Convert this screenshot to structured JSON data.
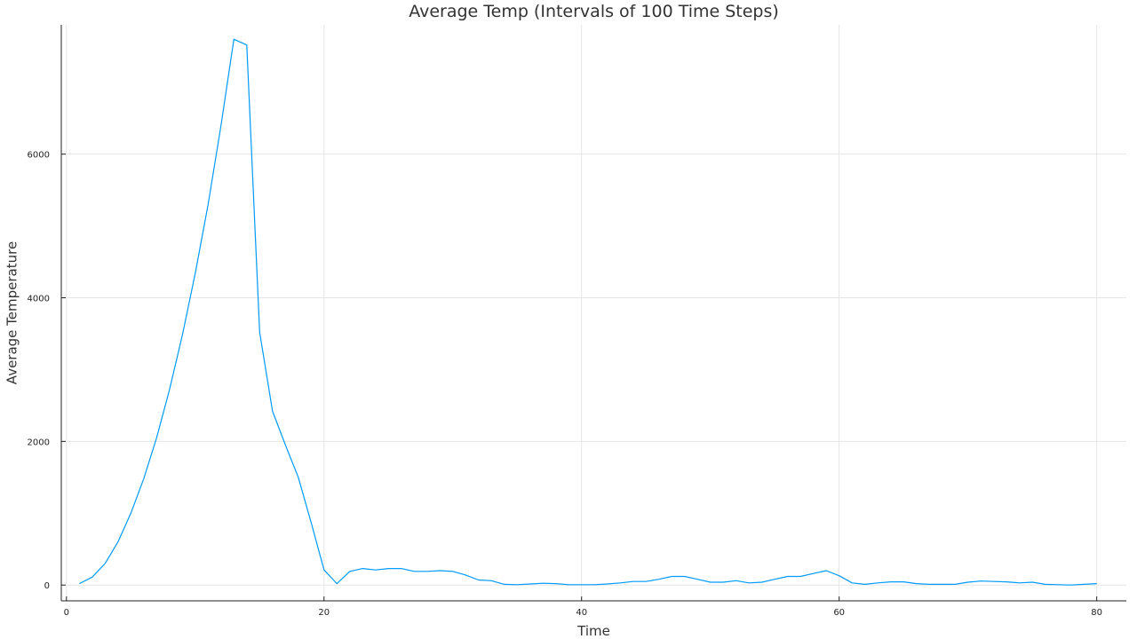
{
  "chart_data": {
    "type": "line",
    "title": "Average Temp (Intervals of 100 Time Steps)",
    "xlabel": "Time",
    "ylabel": "Average Temperature",
    "xlim": [
      -0.4,
      82.3
    ],
    "ylim": [
      -220,
      7800
    ],
    "xticks": [
      0,
      20,
      40,
      60,
      80
    ],
    "yticks": [
      0,
      2000,
      4000,
      6000
    ],
    "grid": true,
    "legend": "none",
    "colors": {
      "series": "#009af9",
      "grid": "#e6e6e6",
      "axis": "#222222",
      "text": "#333333"
    },
    "series": [
      {
        "x": [
          1,
          2,
          3,
          4,
          5,
          6,
          7,
          8,
          9,
          10,
          11,
          12,
          13,
          14,
          15,
          16,
          17,
          18,
          19,
          20,
          21,
          22,
          23,
          24,
          25,
          26,
          27,
          28,
          29,
          30,
          31,
          32,
          33,
          34,
          35,
          36,
          37,
          38,
          39,
          40,
          41,
          42,
          43,
          44,
          45,
          46,
          47,
          48,
          49,
          50,
          51,
          52,
          53,
          54,
          55,
          56,
          57,
          58,
          59,
          60,
          61,
          62,
          63,
          64,
          65,
          66,
          67,
          68,
          69,
          70,
          71,
          72,
          73,
          74,
          75,
          76,
          77,
          78,
          79,
          80
        ],
        "y": [
          20,
          110,
          300,
          600,
          1000,
          1480,
          2050,
          2720,
          3480,
          4340,
          5300,
          6400,
          7600,
          7520,
          3520,
          2420,
          1950,
          1500,
          870,
          210,
          20,
          190,
          230,
          210,
          230,
          230,
          190,
          190,
          200,
          190,
          140,
          70,
          60,
          10,
          5,
          15,
          25,
          20,
          5,
          5,
          5,
          15,
          30,
          50,
          50,
          80,
          120,
          120,
          80,
          40,
          40,
          60,
          30,
          40,
          80,
          120,
          120,
          160,
          200,
          130,
          30,
          10,
          30,
          45,
          45,
          20,
          10,
          10,
          10,
          40,
          55,
          50,
          45,
          30,
          40,
          10,
          5,
          0,
          10,
          20
        ]
      }
    ]
  }
}
